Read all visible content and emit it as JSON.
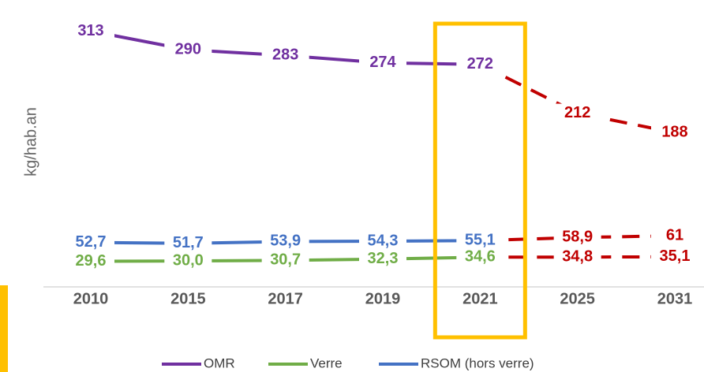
{
  "chart_data": {
    "type": "line",
    "y_label": "kg/hab.an",
    "categories": [
      "2010",
      "2015",
      "2017",
      "2019",
      "2021",
      "2025",
      "2031"
    ],
    "series": [
      {
        "name": "OMR",
        "color": "#7030a0",
        "values": [
          313,
          290,
          283,
          274,
          272,
          212,
          188
        ]
      },
      {
        "name": "Verre",
        "color": "#70ad47",
        "values": [
          29.6,
          30.0,
          30.7,
          32.3,
          34.6,
          34.8,
          35.1
        ],
        "value_labels": [
          "29,6",
          "30,0",
          "30,7",
          "32,3",
          "34,6",
          "34,8",
          "35,1"
        ]
      },
      {
        "name": "RSOM (hors verre)",
        "color": "#4472c4",
        "values": [
          52.7,
          51.7,
          53.9,
          54.3,
          55.1,
          58.9,
          61
        ],
        "value_labels": [
          "52,7",
          "51,7",
          "53,9",
          "54,3",
          "55,1",
          "58,9",
          "61"
        ]
      }
    ],
    "forecast_start": 4,
    "forecast_color": "#c00000",
    "highlight_index": 4,
    "highlight_color": "#ffc000",
    "ylim": [
      0,
      330
    ]
  }
}
